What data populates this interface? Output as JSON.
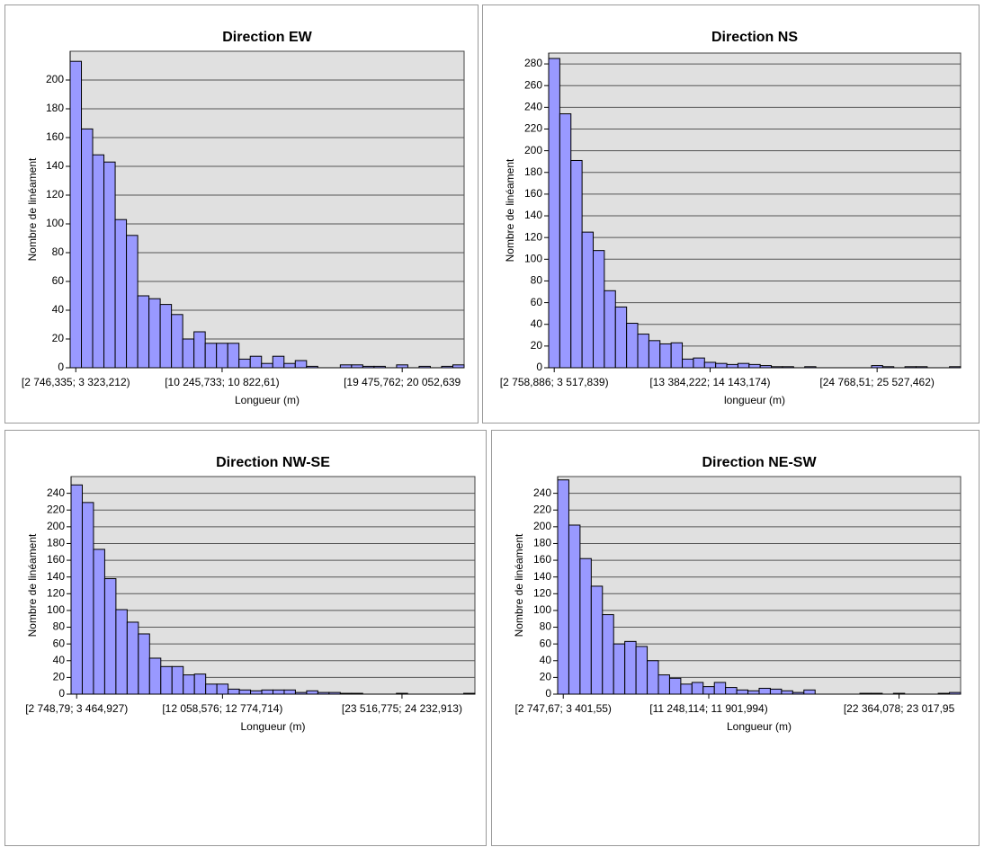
{
  "chart_data": [
    {
      "type": "bar",
      "title": "Direction EW",
      "x_label": "Longueur (m)",
      "y_label": "Nombre de linéament",
      "color": "#9999ff",
      "categories": [
        "[2 746,335; 3 323,212)",
        null,
        null,
        null,
        null,
        null,
        null,
        null,
        null,
        null,
        null,
        null,
        null,
        "[10 245,733; 10 822,61)",
        null,
        null,
        null,
        null,
        null,
        null,
        null,
        null,
        null,
        null,
        null,
        null,
        null,
        null,
        null,
        "[19 475,762; 20 052,639",
        null,
        null,
        null,
        null,
        null
      ],
      "values": [
        213,
        166,
        148,
        143,
        103,
        92,
        50,
        48,
        44,
        37,
        20,
        25,
        17,
        17,
        17,
        6,
        8,
        3,
        8,
        3,
        5,
        1,
        0,
        0,
        2,
        2,
        1,
        1,
        0,
        2,
        0,
        1,
        0,
        1,
        2
      ],
      "ylim": [
        0,
        220
      ],
      "yticks": [
        0,
        20,
        40,
        60,
        80,
        100,
        120,
        140,
        160,
        180,
        200
      ],
      "grid": true
    },
    {
      "type": "bar",
      "title": "Direction NS",
      "x_label": "longueur (m)",
      "y_label": "Nombre de linéament",
      "color": "#9999ff",
      "categories": [
        "[2 758,886; 3 517,839)",
        null,
        null,
        null,
        null,
        null,
        null,
        null,
        null,
        null,
        null,
        null,
        null,
        null,
        "[13 384,222; 14 143,174)",
        null,
        null,
        null,
        null,
        null,
        null,
        null,
        null,
        null,
        null,
        null,
        null,
        null,
        null,
        "[24 768,51; 25 527,462)",
        null,
        null,
        null,
        null,
        null,
        null,
        null
      ],
      "values": [
        285,
        234,
        191,
        125,
        108,
        71,
        56,
        41,
        31,
        25,
        22,
        23,
        8,
        9,
        5,
        4,
        3,
        4,
        3,
        2,
        1,
        1,
        0,
        1,
        0,
        0,
        0,
        0,
        0,
        2,
        1,
        0,
        1,
        1,
        0,
        0,
        1
      ],
      "ylim": [
        0,
        290
      ],
      "yticks": [
        0,
        20,
        40,
        60,
        80,
        100,
        120,
        140,
        160,
        180,
        200,
        220,
        240,
        260,
        280
      ],
      "grid": true
    },
    {
      "type": "bar",
      "title": "Direction NW-SE",
      "x_label": "Longueur (m)",
      "y_label": "Nombre de linéament",
      "color": "#9999ff",
      "categories": [
        "[2 748,79; 3 464,927)",
        null,
        null,
        null,
        null,
        null,
        null,
        null,
        null,
        null,
        null,
        null,
        null,
        "[12 058,576; 12 774,714)",
        null,
        null,
        null,
        null,
        null,
        null,
        null,
        null,
        null,
        null,
        null,
        null,
        null,
        null,
        null,
        "[23 516,775; 24 232,913)",
        null,
        null,
        null,
        null,
        null,
        null
      ],
      "values": [
        250,
        229,
        173,
        138,
        101,
        86,
        72,
        43,
        33,
        33,
        23,
        24,
        12,
        12,
        6,
        5,
        4,
        5,
        5,
        5,
        2,
        4,
        2,
        2,
        1,
        1,
        0,
        0,
        0,
        1,
        0,
        0,
        0,
        0,
        0,
        1
      ],
      "ylim": [
        0,
        260
      ],
      "yticks": [
        0,
        20,
        40,
        60,
        80,
        100,
        120,
        140,
        160,
        180,
        200,
        220,
        240
      ],
      "grid": true
    },
    {
      "type": "bar",
      "title": "Direction NE-SW",
      "x_label": "Longueur (m)",
      "y_label": "Nombre de linéament",
      "color": "#9999ff",
      "categories": [
        "[2 747,67; 3 401,55)",
        null,
        null,
        null,
        null,
        null,
        null,
        null,
        null,
        null,
        null,
        null,
        null,
        "[11 248,114; 11 901,994)",
        null,
        null,
        null,
        null,
        null,
        null,
        null,
        null,
        null,
        null,
        null,
        null,
        null,
        null,
        null,
        null,
        "[22 364,078; 23 017,95",
        null,
        null,
        null,
        null,
        null
      ],
      "values": [
        256,
        202,
        162,
        129,
        95,
        60,
        63,
        57,
        40,
        23,
        19,
        12,
        14,
        9,
        14,
        8,
        5,
        4,
        7,
        6,
        4,
        2,
        5,
        0,
        0,
        0,
        0,
        1,
        1,
        0,
        1,
        0,
        0,
        0,
        1,
        2
      ],
      "ylim": [
        0,
        260
      ],
      "yticks": [
        0,
        20,
        40,
        60,
        80,
        100,
        120,
        140,
        160,
        180,
        200,
        220,
        240
      ],
      "grid": true
    }
  ]
}
